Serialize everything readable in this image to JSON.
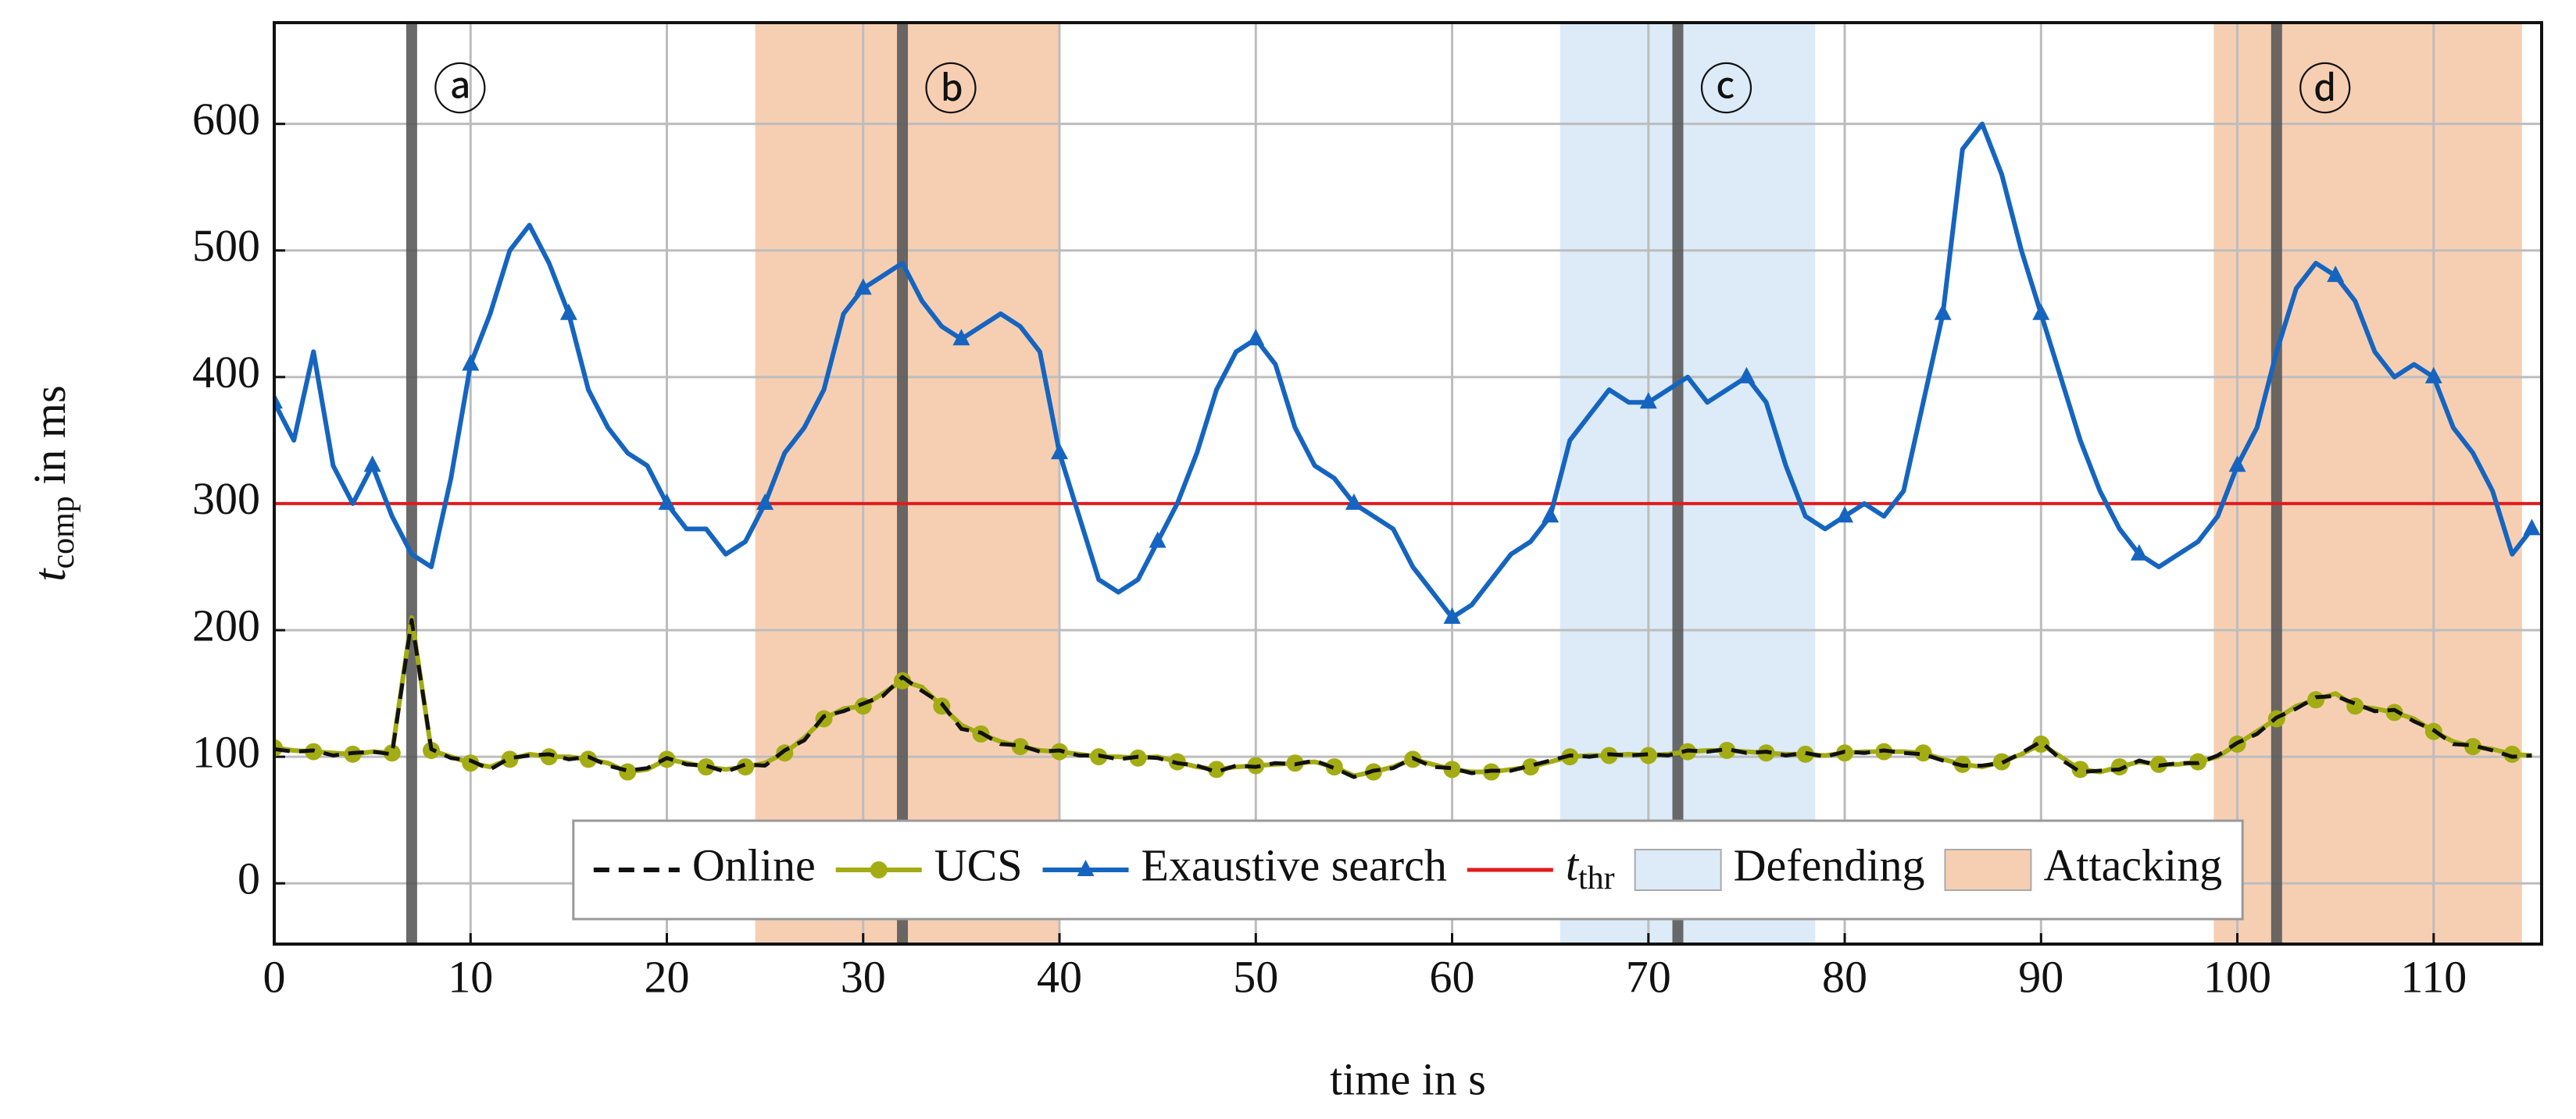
{
  "chart_data": {
    "type": "line",
    "x_label": "time in s",
    "y_label": {
      "main": "t",
      "sub": "comp",
      "rest": " in ms"
    },
    "xlim": [
      0,
      115.5
    ],
    "ylim": [
      -48,
      680
    ],
    "xticks": [
      0,
      10,
      20,
      30,
      40,
      50,
      60,
      70,
      80,
      90,
      100,
      110
    ],
    "yticks": [
      0,
      100,
      200,
      300,
      400,
      500,
      600
    ],
    "grid": true,
    "legend": "bottom",
    "x": [
      0,
      1,
      2,
      3,
      4,
      5,
      6,
      7,
      8,
      9,
      10,
      11,
      12,
      13,
      14,
      15,
      16,
      17,
      18,
      19,
      20,
      21,
      22,
      23,
      24,
      25,
      26,
      27,
      28,
      29,
      30,
      31,
      32,
      33,
      34,
      35,
      36,
      37,
      38,
      39,
      40,
      41,
      42,
      43,
      44,
      45,
      46,
      47,
      48,
      49,
      50,
      51,
      52,
      53,
      54,
      55,
      56,
      57,
      58,
      59,
      60,
      61,
      62,
      63,
      64,
      65,
      66,
      67,
      68,
      69,
      70,
      71,
      72,
      73,
      74,
      75,
      76,
      77,
      78,
      79,
      80,
      81,
      82,
      83,
      84,
      85,
      86,
      87,
      88,
      89,
      90,
      91,
      92,
      93,
      94,
      95,
      96,
      97,
      98,
      99,
      100,
      101,
      102,
      103,
      104,
      105,
      106,
      107,
      108,
      109,
      110,
      111,
      112,
      113,
      114,
      115
    ],
    "series": [
      {
        "name": "Online",
        "color": "#111111",
        "dash": true,
        "values": [
          106,
          104,
          105,
          101,
          103,
          104,
          102,
          208,
          106,
          99,
          97,
          90,
          99,
          101,
          102,
          98,
          100,
          93,
          89,
          91,
          99,
          94,
          93,
          88,
          94,
          93,
          105,
          113,
          132,
          136,
          142,
          148,
          163,
          152,
          142,
          122,
          119,
          110,
          109,
          104,
          105,
          101,
          101,
          98,
          100,
          99,
          95,
          93,
          88,
          93,
          92,
          95,
          94,
          97,
          91,
          84,
          89,
          91,
          99,
          92,
          91,
          87,
          89,
          89,
          93,
          97,
          101,
          100,
          102,
          101,
          102,
          101,
          105,
          104,
          106,
          103,
          104,
          101,
          103,
          100,
          104,
          103,
          105,
          103,
          102,
          97,
          93,
          93,
          95,
          103,
          112,
          98,
          88,
          89,
          90,
          97,
          93,
          95,
          95,
          101,
          111,
          118,
          131,
          138,
          147,
          148,
          142,
          136,
          137,
          128,
          121,
          110,
          109,
          105,
          100,
          101
        ]
      },
      {
        "name": "UCS",
        "color": "#a3ac12",
        "marker": "circle",
        "values": [
          107,
          105,
          104,
          103,
          102,
          104,
          103,
          210,
          105,
          100,
          95,
          92,
          98,
          102,
          100,
          100,
          98,
          95,
          88,
          90,
          98,
          95,
          92,
          90,
          92,
          95,
          103,
          115,
          130,
          138,
          140,
          150,
          160,
          155,
          140,
          125,
          118,
          112,
          108,
          105,
          104,
          102,
          100,
          100,
          99,
          100,
          96,
          92,
          90,
          92,
          93,
          94,
          95,
          96,
          92,
          85,
          88,
          92,
          98,
          94,
          90,
          88,
          88,
          90,
          92,
          96,
          100,
          101,
          101,
          102,
          101,
          102,
          104,
          105,
          105,
          104,
          103,
          102,
          102,
          101,
          103,
          104,
          104,
          104,
          103,
          98,
          94,
          92,
          96,
          102,
          110,
          100,
          90,
          88,
          92,
          96,
          94,
          94,
          96,
          100,
          110,
          120,
          130,
          140,
          145,
          150,
          140,
          138,
          135,
          130,
          120,
          112,
          108,
          106,
          102,
          101
        ]
      },
      {
        "name": "Exaustive search",
        "color": "#1565c0",
        "marker": "triangle",
        "values": [
          380,
          350,
          420,
          330,
          300,
          330,
          290,
          260,
          250,
          320,
          410,
          450,
          500,
          520,
          490,
          450,
          390,
          360,
          340,
          330,
          300,
          280,
          280,
          260,
          270,
          300,
          340,
          360,
          390,
          450,
          470,
          480,
          490,
          460,
          440,
          430,
          440,
          450,
          440,
          420,
          340,
          290,
          240,
          230,
          240,
          270,
          300,
          340,
          390,
          420,
          430,
          410,
          360,
          330,
          320,
          300,
          290,
          280,
          250,
          230,
          210,
          220,
          240,
          260,
          270,
          290,
          350,
          370,
          390,
          380,
          380,
          390,
          400,
          380,
          390,
          400,
          380,
          330,
          290,
          280,
          290,
          300,
          290,
          310,
          380,
          450,
          580,
          600,
          560,
          500,
          450,
          400,
          350,
          310,
          280,
          260,
          250,
          260,
          270,
          290,
          330,
          360,
          420,
          470,
          490,
          480,
          460,
          420,
          400,
          410,
          400,
          360,
          340,
          310,
          260,
          280
        ]
      }
    ],
    "threshold": {
      "name": "t",
      "sub": "thr",
      "value": 300,
      "color": "#e31a1c"
    },
    "regions": [
      {
        "name": "Defending",
        "color": "#dcebf7",
        "spans": [
          [
            65.5,
            78.5
          ]
        ]
      },
      {
        "name": "Attacking",
        "color": "#f6cfb3",
        "spans": [
          [
            24.5,
            40
          ],
          [
            98.8,
            114.5
          ]
        ]
      }
    ],
    "events": [
      {
        "x": 7,
        "label": "ⓐ"
      },
      {
        "x": 32,
        "label": "ⓑ"
      },
      {
        "x": 71.5,
        "label": "ⓒ"
      },
      {
        "x": 102,
        "label": "ⓓ"
      }
    ]
  }
}
